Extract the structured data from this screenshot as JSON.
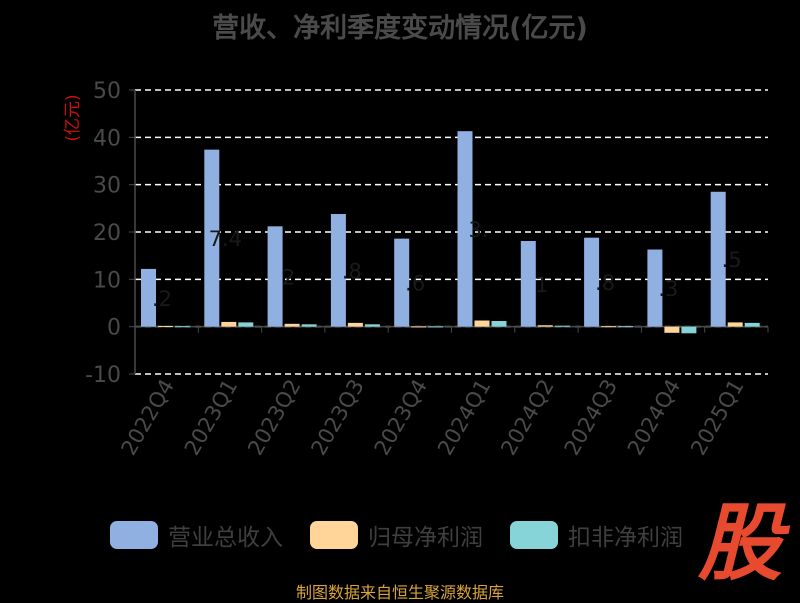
{
  "title": "营收、净利季度变动情况(亿元)",
  "footer": "制图数据来自恒生聚源数据库",
  "logo_text": "股",
  "colors": {
    "background": "#000000",
    "revenue": "#8fb0e0",
    "net_profit": "#ffd59a",
    "deducted_profit": "#86d4d8",
    "axis": "#4a4a4a",
    "grid": "#ffffff",
    "ylabel": "#d01010"
  },
  "chart_data": {
    "type": "bar",
    "title": "营收、净利季度变动情况(亿元)",
    "ylabel": "(亿元)",
    "xlabel": "",
    "ylim": [
      -10,
      50
    ],
    "yticks": [
      "50",
      "40",
      "30",
      "20",
      "10",
      "0",
      "-10"
    ],
    "grid": true,
    "legend_position": "bottom",
    "categories": [
      "2022Q4",
      "2023Q1",
      "2023Q2",
      "2023Q3",
      "2023Q4",
      "2024Q1",
      "2024Q2",
      "2024Q3",
      "2024Q4",
      "2025Q1"
    ],
    "series": [
      {
        "name": "营业总收入",
        "values": [
          12.2,
          37.4,
          21.2,
          23.8,
          18.6,
          41.3,
          18.1,
          18.8,
          16.3,
          28.5
        ]
      },
      {
        "name": "归母净利润",
        "values": [
          0.15,
          1.0,
          0.6,
          0.8,
          0.05,
          1.3,
          0.3,
          0.1,
          -1.3,
          0.9
        ]
      },
      {
        "name": "扣非净利润",
        "values": [
          0.1,
          0.9,
          0.5,
          0.5,
          0.05,
          1.2,
          0.2,
          0.1,
          -1.4,
          0.8
        ]
      }
    ],
    "data_labels": [
      ".2",
      "7.4",
      "2",
      ".8",
      ".6",
      "3.",
      "1",
      ".8",
      ".3",
      ".5"
    ]
  }
}
